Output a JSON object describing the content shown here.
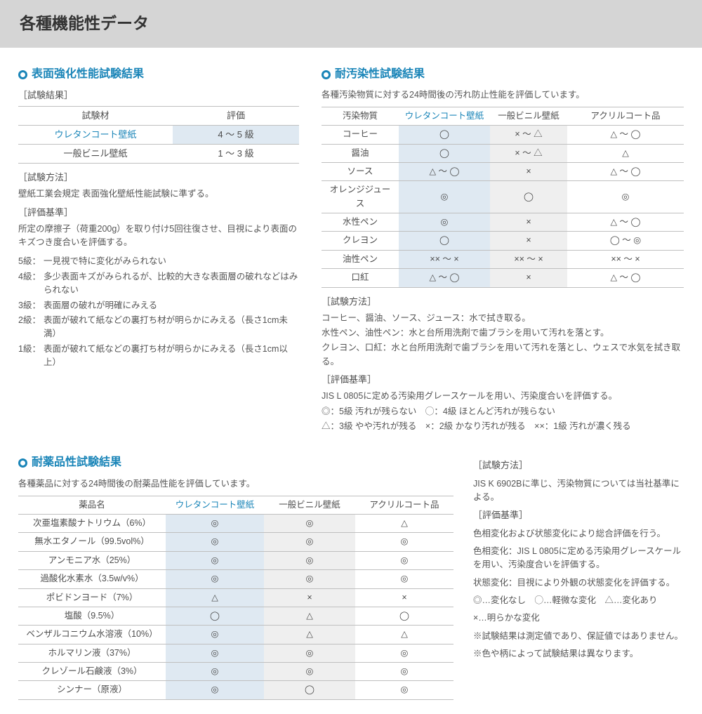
{
  "header": "各種機能性データ",
  "accent_color": "#1a85b8",
  "highlight_bg": "#dfe9f2",
  "grey_bg": "#efefef",
  "s1": {
    "title": "表面強化性能試験結果",
    "res_label": "［試験結果］",
    "cols": [
      "試験材",
      "評価"
    ],
    "rows": [
      {
        "m": "ウレタンコート壁紙",
        "v": "4 ～ 5 級",
        "hl": true
      },
      {
        "m": "一般ビニル壁紙",
        "v": "1 ～ 3 級",
        "hl": false
      }
    ],
    "method_label": "［試験方法］",
    "method": "壁紙工業会規定 表面強化壁紙性能試験に準ずる。",
    "crit_label": "［評価基準］",
    "crit": "所定の摩擦子（荷重200g）を取り付け5回往復させ、目視により表面のキズつき度合いを評価する。",
    "grades": [
      {
        "k": "5級：",
        "v": "一見視で特に変化がみられない"
      },
      {
        "k": "4級：",
        "v": "多少表面キズがみられるが、比較的大きな表面層の破れなどはみられない"
      },
      {
        "k": "3級：",
        "v": "表面層の破れが明確にみえる"
      },
      {
        "k": "2級：",
        "v": "表面が破れて紙などの裏打ち材が明らかにみえる（長さ1cm未満）"
      },
      {
        "k": "1級：",
        "v": "表面が破れて紙などの裏打ち材が明らかにみえる（長さ1cm以上）"
      }
    ]
  },
  "s2": {
    "title": "耐汚染性試験結果",
    "intro": "各種汚染物質に対する24時間後の汚れ防止性能を評価しています。",
    "cols": [
      "汚染物質",
      "ウレタンコート壁紙",
      "一般ビニル壁紙",
      "アクリルコート品"
    ],
    "rows": [
      [
        "コーヒー",
        "◯",
        "× ～ △",
        "△ ～ ◯"
      ],
      [
        "醤油",
        "◯",
        "× ～ △",
        "△"
      ],
      [
        "ソース",
        "△ ～ ◯",
        "×",
        "△ ～ ◯"
      ],
      [
        "オレンジジュース",
        "◎",
        "◯",
        "◎"
      ],
      [
        "水性ペン",
        "◎",
        "×",
        "△ ～ ◯"
      ],
      [
        "クレヨン",
        "◯",
        "×",
        "◯ ～ ◎"
      ],
      [
        "油性ペン",
        "×× ～ ×",
        "×× ～ ×",
        "×× ～ ×"
      ],
      [
        "口紅",
        "△ ～ ◯",
        "×",
        "△ ～ ◯"
      ]
    ],
    "method_label": "［試験方法］",
    "method_lines": [
      "コーヒー、醤油、ソース、ジュース：水で拭き取る。",
      "水性ペン、油性ペン：水と台所用洗剤で歯ブラシを用いて汚れを落とす。",
      "クレヨン、口紅：水と台所用洗剤で歯ブラシを用いて汚れを落とし、ウェスで水気を拭き取る。"
    ],
    "crit_label": "［評価基準］",
    "crit1": "JIS L 0805に定める汚染用グレースケールを用い、汚染度合いを評価する。",
    "crit2": "◎：5級 汚れが残らない　◯：4級 ほとんど汚れが残らない",
    "crit3": "△：3級 やや汚れが残る　×：2級 かなり汚れが残る　××：1級 汚れが濃く残る"
  },
  "s3": {
    "title": "耐薬品性試験結果",
    "intro": "各種薬品に対する24時間後の耐薬品性能を評価しています。",
    "cols": [
      "薬品名",
      "ウレタンコート壁紙",
      "一般ビニル壁紙",
      "アクリルコート品"
    ],
    "rows": [
      [
        "次亜塩素酸ナトリウム（6%）",
        "◎",
        "◎",
        "△"
      ],
      [
        "無水エタノール（99.5vol%）",
        "◎",
        "◎",
        "◎"
      ],
      [
        "アンモニア水（25%）",
        "◎",
        "◎",
        "◎"
      ],
      [
        "過酸化水素水（3.5w/v%）",
        "◎",
        "◎",
        "◎"
      ],
      [
        "ポビドンヨード（7%）",
        "△",
        "×",
        "×"
      ],
      [
        "塩酸（9.5%）",
        "◯",
        "△",
        "◯"
      ],
      [
        "ベンザルコニウム水溶液（10%）",
        "◎",
        "△",
        "△"
      ],
      [
        "ホルマリン液（37%）",
        "◎",
        "◎",
        "◎"
      ],
      [
        "クレゾール石鹸液（3%）",
        "◎",
        "◎",
        "◎"
      ],
      [
        "シンナー（原液）",
        "◎",
        "◯",
        "◎"
      ]
    ],
    "right": {
      "method_label": "［試験方法］",
      "method": "JIS K 6902Bに準じ、汚染物質については当社基準による。",
      "crit_label": "［評価基準］",
      "crit_lines": [
        "色相変化および状態変化により総合評価を行う。",
        "色相変化：JIS L 0805に定める汚染用グレースケールを用い、汚染度合いを評価する。",
        "状態変化：目視により外観の状態変化を評価する。",
        "◎…変化なし　◯…軽微な変化　△…変化あり",
        "×…明らかな変化",
        "※試験結果は測定値であり、保証値ではありません。",
        "※色や柄によって試験結果は異なります。"
      ]
    }
  }
}
